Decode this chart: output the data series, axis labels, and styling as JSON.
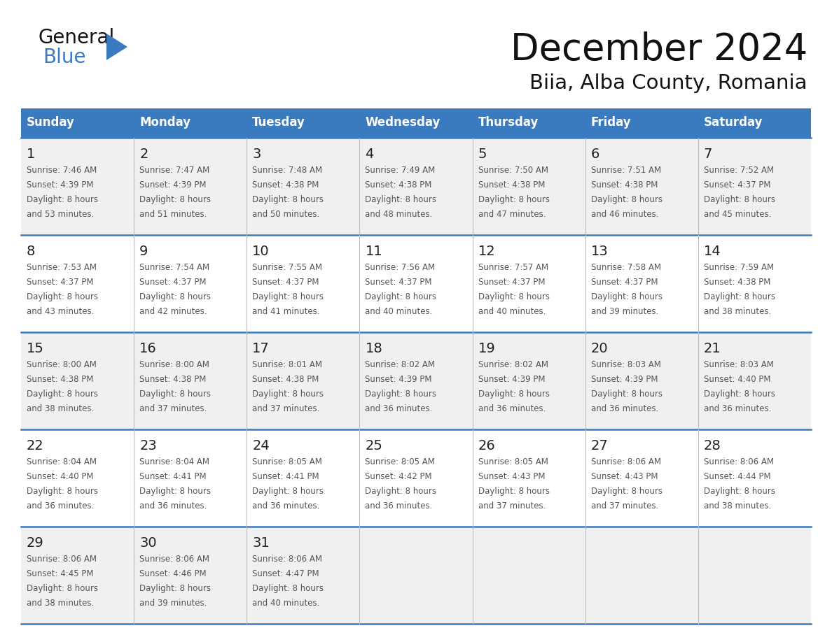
{
  "title": "December 2024",
  "subtitle": "Biia, Alba County, Romania",
  "header_bg": "#3a7abf",
  "header_text": "#ffffff",
  "cell_bg_even": "#f0f0f0",
  "cell_bg_odd": "#ffffff",
  "grid_line_color": "#3a7abf",
  "text_color": "#555555",
  "day_num_color": "#222222",
  "day_names": [
    "Sunday",
    "Monday",
    "Tuesday",
    "Wednesday",
    "Thursday",
    "Friday",
    "Saturday"
  ],
  "weeks": [
    [
      {
        "day": "1",
        "sunrise": "7:46 AM",
        "sunset": "4:39 PM",
        "daylight_h": "8 hours",
        "daylight_m": "and 53 minutes."
      },
      {
        "day": "2",
        "sunrise": "7:47 AM",
        "sunset": "4:39 PM",
        "daylight_h": "8 hours",
        "daylight_m": "and 51 minutes."
      },
      {
        "day": "3",
        "sunrise": "7:48 AM",
        "sunset": "4:38 PM",
        "daylight_h": "8 hours",
        "daylight_m": "and 50 minutes."
      },
      {
        "day": "4",
        "sunrise": "7:49 AM",
        "sunset": "4:38 PM",
        "daylight_h": "8 hours",
        "daylight_m": "and 48 minutes."
      },
      {
        "day": "5",
        "sunrise": "7:50 AM",
        "sunset": "4:38 PM",
        "daylight_h": "8 hours",
        "daylight_m": "and 47 minutes."
      },
      {
        "day": "6",
        "sunrise": "7:51 AM",
        "sunset": "4:38 PM",
        "daylight_h": "8 hours",
        "daylight_m": "and 46 minutes."
      },
      {
        "day": "7",
        "sunrise": "7:52 AM",
        "sunset": "4:37 PM",
        "daylight_h": "8 hours",
        "daylight_m": "and 45 minutes."
      }
    ],
    [
      {
        "day": "8",
        "sunrise": "7:53 AM",
        "sunset": "4:37 PM",
        "daylight_h": "8 hours",
        "daylight_m": "and 43 minutes."
      },
      {
        "day": "9",
        "sunrise": "7:54 AM",
        "sunset": "4:37 PM",
        "daylight_h": "8 hours",
        "daylight_m": "and 42 minutes."
      },
      {
        "day": "10",
        "sunrise": "7:55 AM",
        "sunset": "4:37 PM",
        "daylight_h": "8 hours",
        "daylight_m": "and 41 minutes."
      },
      {
        "day": "11",
        "sunrise": "7:56 AM",
        "sunset": "4:37 PM",
        "daylight_h": "8 hours",
        "daylight_m": "and 40 minutes."
      },
      {
        "day": "12",
        "sunrise": "7:57 AM",
        "sunset": "4:37 PM",
        "daylight_h": "8 hours",
        "daylight_m": "and 40 minutes."
      },
      {
        "day": "13",
        "sunrise": "7:58 AM",
        "sunset": "4:37 PM",
        "daylight_h": "8 hours",
        "daylight_m": "and 39 minutes."
      },
      {
        "day": "14",
        "sunrise": "7:59 AM",
        "sunset": "4:38 PM",
        "daylight_h": "8 hours",
        "daylight_m": "and 38 minutes."
      }
    ],
    [
      {
        "day": "15",
        "sunrise": "8:00 AM",
        "sunset": "4:38 PM",
        "daylight_h": "8 hours",
        "daylight_m": "and 38 minutes."
      },
      {
        "day": "16",
        "sunrise": "8:00 AM",
        "sunset": "4:38 PM",
        "daylight_h": "8 hours",
        "daylight_m": "and 37 minutes."
      },
      {
        "day": "17",
        "sunrise": "8:01 AM",
        "sunset": "4:38 PM",
        "daylight_h": "8 hours",
        "daylight_m": "and 37 minutes."
      },
      {
        "day": "18",
        "sunrise": "8:02 AM",
        "sunset": "4:39 PM",
        "daylight_h": "8 hours",
        "daylight_m": "and 36 minutes."
      },
      {
        "day": "19",
        "sunrise": "8:02 AM",
        "sunset": "4:39 PM",
        "daylight_h": "8 hours",
        "daylight_m": "and 36 minutes."
      },
      {
        "day": "20",
        "sunrise": "8:03 AM",
        "sunset": "4:39 PM",
        "daylight_h": "8 hours",
        "daylight_m": "and 36 minutes."
      },
      {
        "day": "21",
        "sunrise": "8:03 AM",
        "sunset": "4:40 PM",
        "daylight_h": "8 hours",
        "daylight_m": "and 36 minutes."
      }
    ],
    [
      {
        "day": "22",
        "sunrise": "8:04 AM",
        "sunset": "4:40 PM",
        "daylight_h": "8 hours",
        "daylight_m": "and 36 minutes."
      },
      {
        "day": "23",
        "sunrise": "8:04 AM",
        "sunset": "4:41 PM",
        "daylight_h": "8 hours",
        "daylight_m": "and 36 minutes."
      },
      {
        "day": "24",
        "sunrise": "8:05 AM",
        "sunset": "4:41 PM",
        "daylight_h": "8 hours",
        "daylight_m": "and 36 minutes."
      },
      {
        "day": "25",
        "sunrise": "8:05 AM",
        "sunset": "4:42 PM",
        "daylight_h": "8 hours",
        "daylight_m": "and 36 minutes."
      },
      {
        "day": "26",
        "sunrise": "8:05 AM",
        "sunset": "4:43 PM",
        "daylight_h": "8 hours",
        "daylight_m": "and 37 minutes."
      },
      {
        "day": "27",
        "sunrise": "8:06 AM",
        "sunset": "4:43 PM",
        "daylight_h": "8 hours",
        "daylight_m": "and 37 minutes."
      },
      {
        "day": "28",
        "sunrise": "8:06 AM",
        "sunset": "4:44 PM",
        "daylight_h": "8 hours",
        "daylight_m": "and 38 minutes."
      }
    ],
    [
      {
        "day": "29",
        "sunrise": "8:06 AM",
        "sunset": "4:45 PM",
        "daylight_h": "8 hours",
        "daylight_m": "and 38 minutes."
      },
      {
        "day": "30",
        "sunrise": "8:06 AM",
        "sunset": "4:46 PM",
        "daylight_h": "8 hours",
        "daylight_m": "and 39 minutes."
      },
      {
        "day": "31",
        "sunrise": "8:06 AM",
        "sunset": "4:47 PM",
        "daylight_h": "8 hours",
        "daylight_m": "and 40 minutes."
      },
      null,
      null,
      null,
      null
    ]
  ]
}
